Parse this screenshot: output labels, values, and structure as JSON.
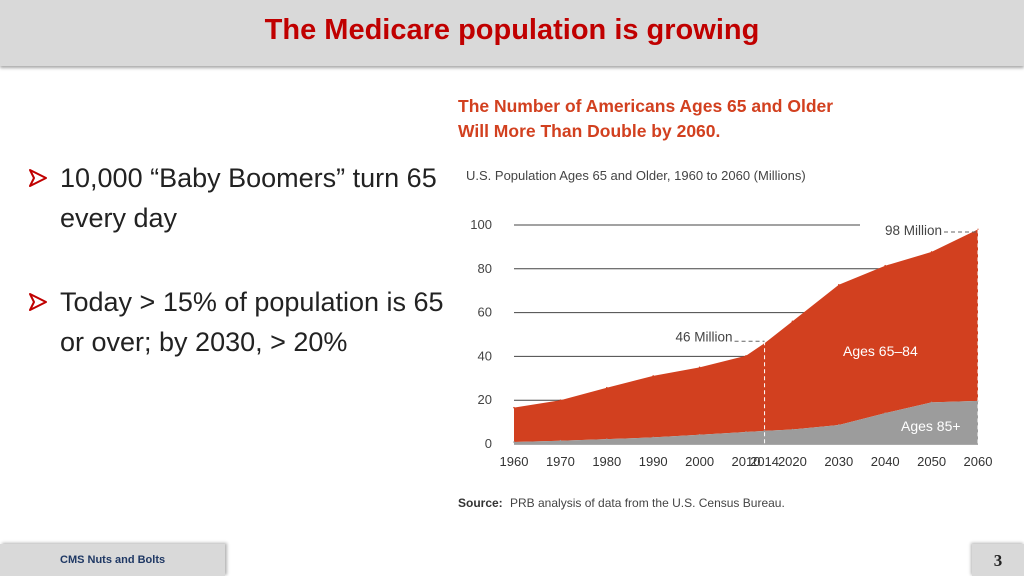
{
  "slide": {
    "title": "The Medicare population is growing",
    "bullets": [
      "10,000 “Baby Boomers” turn 65 every day",
      "Today > 15% of population is 65 or over; by 2030, > 20%"
    ],
    "footer": "CMS Nuts and Bolts",
    "page_number": "3"
  },
  "colors": {
    "title": "#c00000",
    "chart_title": "#d2401f",
    "series_65_84": "#d2401f",
    "series_85_plus": "#9c9c9c"
  },
  "chart_data": {
    "type": "area",
    "stacked": true,
    "title": "The Number of Americans Ages 65 and Older Will More Than Double by 2060.",
    "subtitle": "U.S. Population Ages 65 and Older, 1960 to 2060 (Millions)",
    "x": [
      "1960",
      "1970",
      "1980",
      "1990",
      "2000",
      "2010",
      "2014",
      "2020",
      "2030",
      "2040",
      "2050",
      "2060"
    ],
    "series": [
      {
        "name": "Ages 85+",
        "values": [
          0.9,
          1.5,
          2.2,
          3.0,
          4.2,
          5.5,
          6.0,
          6.6,
          8.7,
          14.1,
          19.0,
          19.7
        ]
      },
      {
        "name": "Ages 65–84",
        "values": [
          15.7,
          18.5,
          23.5,
          28.1,
          30.8,
          34.8,
          40.0,
          49.4,
          64.0,
          67.3,
          68.7,
          78.3
        ]
      }
    ],
    "ylim": [
      0,
      100
    ],
    "yticks": [
      0,
      20,
      40,
      60,
      80,
      100
    ],
    "annotations": [
      {
        "text": "46 Million",
        "x": "2014"
      },
      {
        "text": "98 Million",
        "x": "2060"
      }
    ],
    "source_label": "Source:",
    "source_text": "PRB analysis of data from the U.S. Census Bureau."
  }
}
